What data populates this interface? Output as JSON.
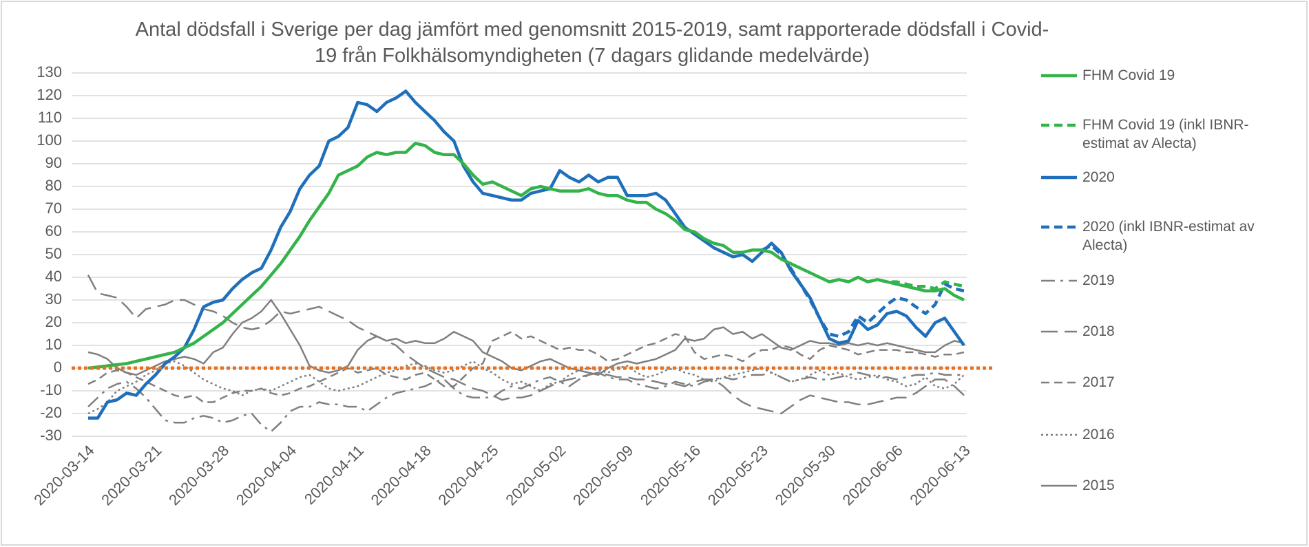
{
  "chart_data": {
    "type": "line",
    "title": "Antal dödsfall i Sverige per dag jämfört med genomsnitt 2015-2019, samt rapporterade dödsfall i Covid-19 från Folkhälsomyndigheten (7 dagars glidande medelvärde)",
    "categories": [
      "2020-03-14",
      null,
      null,
      null,
      null,
      null,
      null,
      "2020-03-21",
      null,
      null,
      null,
      null,
      null,
      null,
      "2020-03-28",
      null,
      null,
      null,
      null,
      null,
      null,
      "2020-04-04",
      null,
      null,
      null,
      null,
      null,
      null,
      "2020-04-11",
      null,
      null,
      null,
      null,
      null,
      null,
      "2020-04-18",
      null,
      null,
      null,
      null,
      null,
      null,
      "2020-04-25",
      null,
      null,
      null,
      null,
      null,
      null,
      "2020-05-02",
      null,
      null,
      null,
      null,
      null,
      null,
      "2020-05-09",
      null,
      null,
      null,
      null,
      null,
      null,
      "2020-05-16",
      null,
      null,
      null,
      null,
      null,
      null,
      "2020-05-23",
      null,
      null,
      null,
      null,
      null,
      null,
      "2020-05-30",
      null,
      null,
      null,
      null,
      null,
      null,
      "2020-06-06",
      null,
      null,
      null,
      null,
      null,
      null,
      "2020-06-13"
    ],
    "ylim": [
      -30,
      130
    ],
    "yticks": [
      -30,
      -20,
      -10,
      0,
      10,
      20,
      30,
      40,
      50,
      60,
      70,
      80,
      90,
      100,
      110,
      120,
      130
    ],
    "grid": true,
    "zero_line_color": "#e8711f",
    "legend": "right",
    "series": [
      {
        "name": "FHM Covid 19",
        "color": "#33b34a",
        "style": "solid",
        "width": 4.5,
        "values": [
          0,
          0.5,
          1,
          1.5,
          2,
          3,
          4,
          5,
          6,
          7,
          9,
          11,
          14,
          17,
          20,
          24,
          28,
          32,
          36,
          41,
          46,
          52,
          58,
          65,
          71,
          77,
          85,
          87,
          89,
          93,
          95,
          94,
          95,
          95,
          99,
          98,
          95,
          94,
          94,
          90,
          85,
          81,
          82,
          80,
          78,
          76,
          79,
          80,
          79,
          78,
          78,
          78,
          79,
          77,
          76,
          76,
          74,
          73,
          73,
          70,
          68,
          65,
          61,
          60,
          57,
          55,
          54,
          51,
          51,
          52,
          52,
          51,
          48,
          46,
          44,
          42,
          40,
          38,
          39,
          38,
          40,
          38,
          39,
          38,
          37,
          36,
          35,
          34,
          34,
          35,
          32,
          30
        ]
      },
      {
        "name": "FHM Covid 19 (inkl IBNR-estimat av Alecta)",
        "color": "#33b34a",
        "style": "dash",
        "width": 4.5,
        "values": [
          null,
          null,
          null,
          null,
          null,
          null,
          null,
          null,
          null,
          null,
          null,
          null,
          null,
          null,
          null,
          null,
          null,
          null,
          null,
          null,
          null,
          null,
          null,
          null,
          null,
          null,
          null,
          null,
          null,
          null,
          null,
          null,
          null,
          null,
          null,
          null,
          null,
          null,
          null,
          null,
          null,
          null,
          null,
          null,
          null,
          null,
          null,
          null,
          null,
          null,
          null,
          null,
          null,
          null,
          null,
          null,
          null,
          null,
          null,
          null,
          null,
          null,
          null,
          null,
          null,
          null,
          null,
          null,
          null,
          null,
          null,
          null,
          null,
          null,
          null,
          null,
          null,
          38,
          39,
          38,
          40,
          38,
          39,
          38,
          38,
          37,
          36,
          36,
          35,
          38,
          37,
          36
        ]
      },
      {
        "name": "2020",
        "color": "#1f6fba",
        "style": "solid",
        "width": 4.5,
        "values": [
          -22,
          -22,
          -15,
          -14,
          -11,
          -12,
          -7,
          -3,
          2,
          5,
          9,
          17,
          27,
          29,
          30,
          35,
          39,
          42,
          44,
          52,
          62,
          69,
          79,
          85,
          89,
          100,
          102,
          106,
          117,
          116,
          113,
          117,
          119,
          122,
          117,
          113,
          109,
          104,
          100,
          89,
          82,
          77,
          76,
          75,
          74,
          74,
          77,
          78,
          79,
          87,
          84,
          82,
          85,
          82,
          84,
          84,
          76,
          76,
          76,
          77,
          74,
          68,
          62,
          59,
          56,
          53,
          51,
          49,
          50,
          47,
          51,
          55,
          51,
          43,
          37,
          31,
          22,
          13,
          11,
          12,
          21,
          17,
          19,
          24,
          25,
          23,
          18,
          14,
          20,
          22,
          16,
          10
        ]
      },
      {
        "name": "2020 (inkl IBNR-estimat av Alecta)",
        "color": "#1f6fba",
        "style": "dash",
        "width": 4.5,
        "values": [
          null,
          null,
          null,
          null,
          null,
          null,
          null,
          null,
          null,
          null,
          null,
          null,
          null,
          null,
          null,
          null,
          null,
          null,
          null,
          null,
          null,
          null,
          null,
          null,
          null,
          null,
          null,
          null,
          null,
          null,
          null,
          null,
          null,
          null,
          null,
          null,
          null,
          null,
          null,
          null,
          null,
          null,
          null,
          null,
          null,
          null,
          null,
          null,
          null,
          null,
          null,
          null,
          null,
          null,
          null,
          null,
          null,
          null,
          null,
          null,
          null,
          null,
          null,
          null,
          null,
          null,
          null,
          null,
          null,
          null,
          52,
          54,
          50,
          44,
          37,
          30,
          22,
          15,
          14,
          16,
          23,
          20,
          24,
          28,
          31,
          30,
          27,
          24,
          28,
          37,
          35,
          34
        ]
      },
      {
        "name": "2019",
        "color": "#7f7f7f",
        "style": "dashdot",
        "width": 2.5,
        "values": [
          -17,
          -13,
          -9,
          -7,
          -6,
          -9,
          -13,
          -18,
          -23,
          -24,
          -24,
          -22,
          -21,
          -22,
          -24,
          -23,
          -21,
          -20,
          -25,
          -28,
          -24,
          -19,
          -17,
          -17,
          -15,
          -16,
          -16,
          -17,
          -17,
          -19,
          -16,
          -13,
          -11,
          -10,
          -9,
          -8,
          -6,
          -5,
          -9,
          -12,
          -13,
          -13,
          -13,
          -10,
          -8,
          -9,
          -7,
          -5,
          -4,
          -6,
          -8,
          -5,
          -3,
          -2,
          -4,
          -5,
          -5,
          -7,
          -8,
          -9,
          -8,
          -6,
          -7,
          -8,
          -6,
          -5,
          -4,
          -5,
          -4,
          -3,
          -3,
          -2,
          -4,
          -6,
          -5,
          -4,
          -5,
          -5,
          -4,
          -3,
          -2,
          -3,
          -4,
          -4,
          -5,
          -4,
          -3,
          -3,
          -2,
          -3,
          -3,
          -3
        ]
      },
      {
        "name": "2018",
        "color": "#7f7f7f",
        "style": "longdash",
        "width": 2.5,
        "values": [
          41,
          33,
          32,
          31,
          27,
          22,
          26,
          27,
          28,
          30,
          30,
          28,
          26,
          25,
          23,
          20,
          18,
          17,
          18,
          21,
          25,
          24,
          25,
          26,
          27,
          25,
          23,
          21,
          18,
          16,
          14,
          12,
          10,
          6,
          3,
          0,
          -2,
          -4,
          -5,
          -7,
          -9,
          -10,
          -12,
          -14,
          -13,
          -13,
          -12,
          -10,
          -8,
          -6,
          -5,
          -4,
          -3,
          -2,
          -3,
          -4,
          -4,
          -5,
          -5,
          -6,
          -7,
          -7,
          -8,
          -6,
          -5,
          -5,
          -8,
          -12,
          -15,
          -17,
          -18,
          -19,
          -20,
          -17,
          -14,
          -12,
          -13,
          -14,
          -15,
          -15,
          -16,
          -16,
          -15,
          -14,
          -13,
          -13,
          -11,
          -8,
          -5,
          -5,
          -8,
          -12
        ]
      },
      {
        "name": "2017",
        "color": "#7f7f7f",
        "style": "dash",
        "width": 2.5,
        "values": [
          -7,
          -5,
          -2,
          -1,
          -2,
          -4,
          -6,
          -8,
          -10,
          -12,
          -13,
          -12,
          -15,
          -15,
          -13,
          -11,
          -10,
          -10,
          -9,
          -11,
          -12,
          -11,
          -9,
          -8,
          -6,
          -4,
          -2,
          0,
          -2,
          -1,
          0,
          -3,
          -4,
          -5,
          -3,
          -2,
          -5,
          -8,
          -8,
          -4,
          0,
          2,
          12,
          14,
          16,
          13,
          14,
          12,
          10,
          8,
          9,
          8,
          8,
          6,
          3,
          4,
          6,
          8,
          10,
          11,
          13,
          15,
          14,
          7,
          4,
          5,
          6,
          5,
          3,
          6,
          8,
          8,
          10,
          9,
          6,
          4,
          8,
          10,
          9,
          8,
          6,
          7,
          8,
          8,
          8,
          7,
          7,
          6,
          5,
          6,
          6,
          7
        ]
      },
      {
        "name": "2016",
        "color": "#7f7f7f",
        "style": "dot",
        "width": 2.5,
        "values": [
          -20,
          -18,
          -15,
          -10,
          -8,
          -6,
          -3,
          -1,
          2,
          3,
          1,
          -2,
          -5,
          -7,
          -9,
          -10,
          -12,
          -10,
          -9,
          -10,
          -8,
          -6,
          -4,
          -3,
          -6,
          -9,
          -10,
          -9,
          -8,
          -6,
          -4,
          -2,
          -1,
          1,
          2,
          1,
          -1,
          -2,
          -1,
          1,
          3,
          0,
          -2,
          -5,
          -7,
          -6,
          -8,
          -10,
          -7,
          -6,
          -3,
          -1,
          0,
          -1,
          -2,
          0,
          1,
          -2,
          -4,
          -3,
          -1,
          0,
          -2,
          -3,
          -5,
          -6,
          -4,
          -3,
          -2,
          -1,
          0,
          -2,
          -4,
          -6,
          -5,
          -3,
          -1,
          -3,
          -2,
          -4,
          -5,
          -4,
          -3,
          -5,
          -6,
          -8,
          -7,
          -4,
          -8,
          -9,
          -7,
          -3
        ]
      },
      {
        "name": "2015",
        "color": "#7f7f7f",
        "style": "solid",
        "width": 2.5,
        "values": [
          7,
          6,
          4,
          0,
          -2,
          -3,
          -1,
          1,
          3,
          4,
          5,
          4,
          2,
          7,
          9,
          15,
          20,
          22,
          25,
          30,
          24,
          17,
          10,
          1,
          -1,
          -2,
          -1,
          1,
          8,
          12,
          14,
          12,
          13,
          11,
          12,
          11,
          11,
          13,
          16,
          14,
          12,
          7,
          5,
          3,
          0,
          -1,
          1,
          3,
          4,
          2,
          0,
          -1,
          -2,
          -3,
          0,
          2,
          3,
          2,
          3,
          4,
          6,
          8,
          13,
          12,
          13,
          17,
          18,
          15,
          16,
          13,
          15,
          12,
          9,
          8,
          10,
          12,
          11,
          11,
          10,
          11,
          10,
          11,
          10,
          11,
          10,
          9,
          8,
          7,
          7,
          10,
          12,
          11
        ]
      }
    ]
  }
}
